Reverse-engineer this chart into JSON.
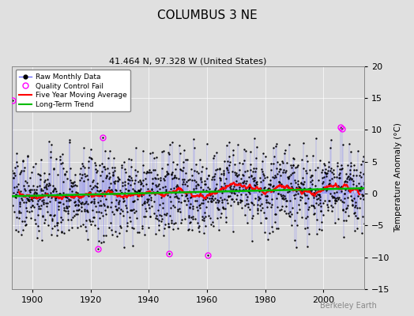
{
  "title": "COLUMBUS 3 NE",
  "subtitle": "41.464 N, 97.328 W (United States)",
  "ylabel": "Temperature Anomaly (°C)",
  "legend_labels": [
    "Raw Monthly Data",
    "Quality Control Fail",
    "Five Year Moving Average",
    "Long-Term Trend"
  ],
  "xlim": [
    1893,
    2014
  ],
  "ylim": [
    -15,
    20
  ],
  "yticks": [
    -15,
    -10,
    -5,
    0,
    5,
    10,
    15,
    20
  ],
  "bg_color": "#e0e0e0",
  "plot_bg_color": "#dcdcdc",
  "raw_color": "#4444ff",
  "raw_line_color": "#6666ff",
  "dot_color": "#000000",
  "qc_color": "#ff00ff",
  "moving_avg_color": "#ff0000",
  "trend_color": "#00bb00",
  "watermark": "Berkeley Earth",
  "watermark_color": "#888888",
  "grid_color": "#ffffff",
  "start_year": 1893,
  "end_year": 2014,
  "noise_scale": 3.8,
  "seed": 137
}
